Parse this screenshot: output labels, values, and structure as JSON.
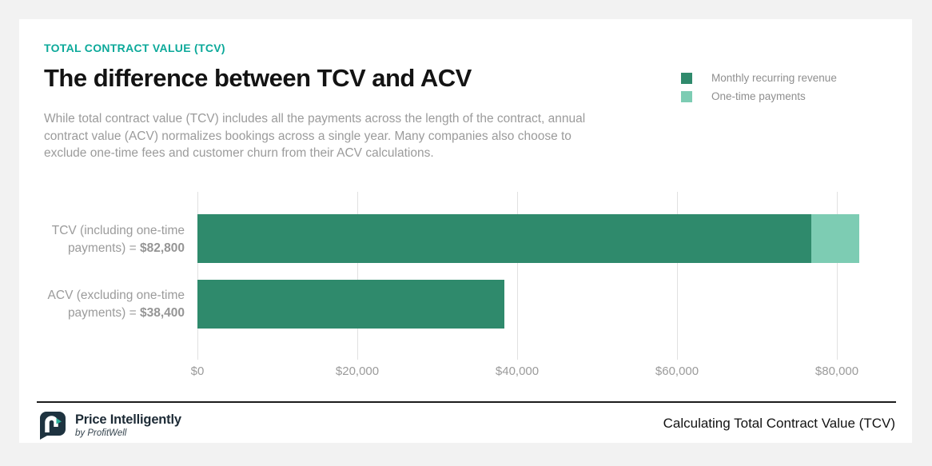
{
  "colors": {
    "page_bg": "#f2f2f2",
    "card_bg": "#ffffff",
    "accent_teal": "#0ca99a",
    "bar_dark": "#2f8a6c",
    "bar_light": "#7dccb3",
    "grid_gray": "#e1e1e1",
    "body_gray": "#9b9b9b",
    "logo_navy": "#1e3340"
  },
  "header": {
    "eyebrow": "TOTAL CONTRACT VALUE (TCV)",
    "title": "The difference between TCV and ACV",
    "description": "While total contract value (TCV) includes all the payments across the length of the contract, annual contract value (ACV) normalizes bookings across a single year. Many companies also choose to exclude one-time fees and customer churn from their ACV calculations."
  },
  "legend": {
    "items": [
      {
        "label": "Monthly recurring revenue",
        "color": "#2f8a6c"
      },
      {
        "label": "One-time payments",
        "color": "#7dccb3"
      }
    ]
  },
  "chart_data": {
    "type": "bar",
    "orientation": "horizontal",
    "title": "The difference between TCV and ACV",
    "categories": [
      "TCV (including one-time payments) = $82,800",
      "ACV (excluding one-time payments) = $38,400"
    ],
    "series": [
      {
        "name": "Monthly recurring revenue",
        "color": "#2f8a6c",
        "values": [
          76800,
          38400
        ]
      },
      {
        "name": "One-time payments",
        "color": "#7dccb3",
        "values": [
          6000,
          0
        ]
      }
    ],
    "totals": [
      82800,
      38400
    ],
    "xlim": [
      0,
      85400
    ],
    "xticks": [
      0,
      20000,
      40000,
      60000,
      80000
    ],
    "xtick_labels": [
      "$0",
      "$20,000",
      "$40,000",
      "$60,000",
      "$80,000"
    ],
    "grid": "vertical",
    "legend_position": "top-right"
  },
  "row_labels": [
    {
      "prefix": "TCV (including one-time payments) = ",
      "value": "$82,800"
    },
    {
      "prefix": "ACV (excluding one-time payments) = ",
      "value": "$38,400"
    }
  ],
  "footer": {
    "brand_name": "Price Intelligently",
    "brand_sub": "by ProfitWell",
    "caption": "Calculating Total Contract Value (TCV)"
  }
}
